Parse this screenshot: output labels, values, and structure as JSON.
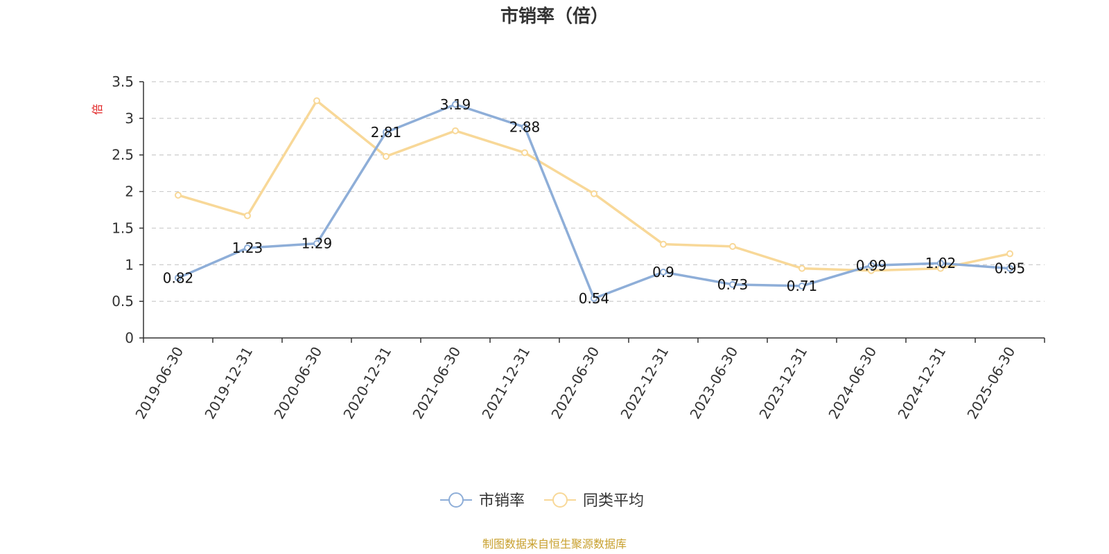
{
  "chart_data": {
    "type": "line",
    "title": "市销率（倍）",
    "ylabel": "倍",
    "xlabel": "",
    "categories": [
      "2019-06-30",
      "2019-12-31",
      "2020-06-30",
      "2020-12-31",
      "2021-06-30",
      "2021-12-31",
      "2022-06-30",
      "2022-12-31",
      "2023-06-30",
      "2023-12-31",
      "2024-06-30",
      "2024-12-31",
      "2025-06-30"
    ],
    "yticks": [
      "0",
      "0.5",
      "1",
      "1.5",
      "2",
      "2.5",
      "3",
      "3.5"
    ],
    "ylim": [
      0,
      3.5
    ],
    "grid": true,
    "legend_position": "bottom",
    "series": [
      {
        "name": "市销率",
        "color": "#8eaed8",
        "values": [
          0.82,
          1.23,
          1.29,
          2.81,
          3.19,
          2.88,
          0.54,
          0.9,
          0.73,
          0.71,
          0.99,
          1.02,
          0.95
        ],
        "labels": [
          "0.82",
          "1.23",
          "1.29",
          "2.81",
          "3.19",
          "2.88",
          "0.54",
          "0.9",
          "0.73",
          "0.71",
          "0.99",
          "1.02",
          "0.95"
        ]
      },
      {
        "name": "同类平均",
        "color": "#f8d898",
        "values": [
          1.95,
          1.67,
          3.24,
          2.48,
          2.83,
          2.53,
          1.97,
          1.28,
          1.25,
          0.95,
          0.92,
          0.95,
          1.15
        ]
      }
    ],
    "source": "制图数据来自恒生聚源数据库"
  }
}
